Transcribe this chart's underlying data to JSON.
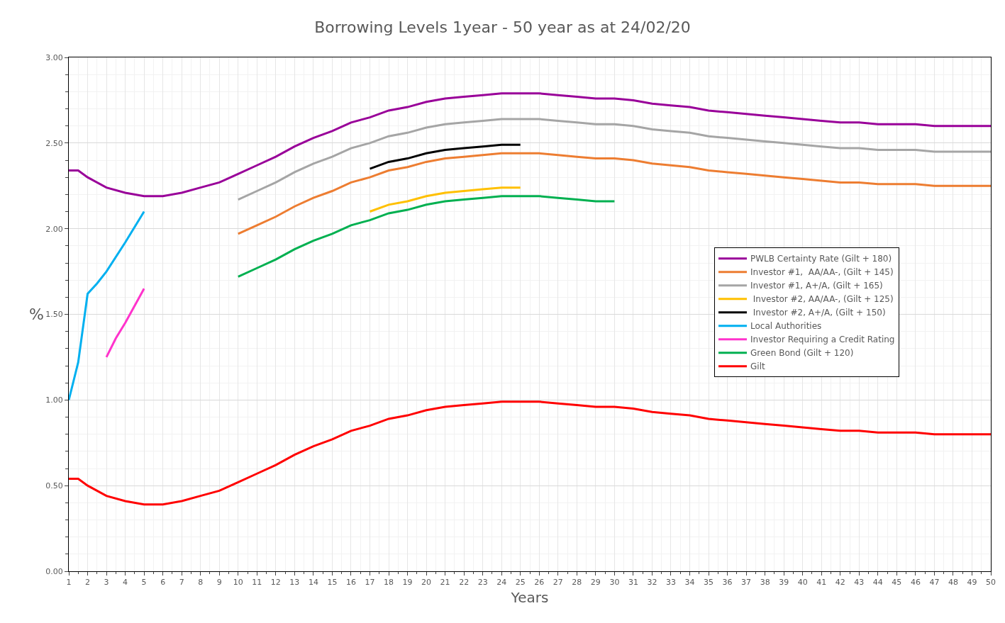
{
  "chart_data": {
    "type": "line",
    "title": "Borrowing Levels 1year - 50 year as at 24/02/20",
    "xlabel": "Years",
    "ylabel": "%",
    "xlim": [
      1,
      50
    ],
    "xticks": [
      1,
      2,
      3,
      4,
      5,
      6,
      7,
      8,
      9,
      10,
      11,
      12,
      13,
      14,
      15,
      16,
      17,
      18,
      19,
      20,
      21,
      22,
      23,
      24,
      25,
      26,
      27,
      28,
      29,
      30,
      31,
      32,
      33,
      34,
      35,
      36,
      37,
      38,
      39,
      40,
      41,
      42,
      43,
      44,
      45,
      46,
      47,
      48,
      49,
      50
    ],
    "ylim": [
      0,
      3
    ],
    "yticks": [
      {
        "value": 0,
        "label": "0.00"
      },
      {
        "value": 0.5,
        "label": "0.50"
      },
      {
        "value": 1,
        "label": "1.00"
      },
      {
        "value": 1.5,
        "label": "1.50"
      },
      {
        "value": 2,
        "label": "2.00"
      },
      {
        "value": 2.5,
        "label": "2.50"
      },
      {
        "value": 3,
        "label": "3.00"
      }
    ],
    "grid": true,
    "legend": "right",
    "line_style": "solid",
    "series": [
      {
        "name": "PWLB Certainty Rate (Gilt + 180)",
        "color": "#990099",
        "x": [
          1,
          1.5,
          2,
          3,
          4,
          5,
          6,
          7,
          8,
          9,
          10,
          11,
          12,
          13,
          14,
          15,
          16,
          17,
          18,
          19,
          20,
          21,
          22,
          23,
          24,
          25,
          26,
          27,
          28,
          29,
          30,
          31,
          32,
          33,
          34,
          35,
          36,
          37,
          38,
          39,
          40,
          41,
          42,
          43,
          44,
          45,
          46,
          47,
          48,
          49,
          50
        ],
        "values": [
          2.34,
          2.34,
          2.3,
          2.24,
          2.21,
          2.19,
          2.19,
          2.21,
          2.24,
          2.27,
          2.32,
          2.37,
          2.42,
          2.48,
          2.53,
          2.57,
          2.62,
          2.65,
          2.69,
          2.71,
          2.74,
          2.76,
          2.77,
          2.78,
          2.79,
          2.79,
          2.79,
          2.78,
          2.77,
          2.76,
          2.76,
          2.75,
          2.73,
          2.72,
          2.71,
          2.69,
          2.68,
          2.67,
          2.66,
          2.65,
          2.64,
          2.63,
          2.62,
          2.62,
          2.61,
          2.61,
          2.61,
          2.6,
          2.6,
          2.6,
          2.6
        ]
      },
      {
        "name": "Investor #1,  AA/AA-, (Gilt + 145)",
        "color": "#ed7d31",
        "x": [
          10,
          11,
          12,
          13,
          14,
          15,
          16,
          17,
          18,
          19,
          20,
          21,
          22,
          23,
          24,
          25,
          26,
          27,
          28,
          29,
          30,
          31,
          32,
          33,
          34,
          35,
          36,
          37,
          38,
          39,
          40,
          41,
          42,
          43,
          44,
          45,
          46,
          47,
          48,
          49,
          50
        ],
        "values": [
          1.97,
          2.02,
          2.07,
          2.13,
          2.18,
          2.22,
          2.27,
          2.3,
          2.34,
          2.36,
          2.39,
          2.41,
          2.42,
          2.43,
          2.44,
          2.44,
          2.44,
          2.43,
          2.42,
          2.41,
          2.41,
          2.4,
          2.38,
          2.37,
          2.36,
          2.34,
          2.33,
          2.32,
          2.31,
          2.3,
          2.29,
          2.28,
          2.27,
          2.27,
          2.26,
          2.26,
          2.26,
          2.25,
          2.25,
          2.25,
          2.25
        ]
      },
      {
        "name": "Investor #1, A+/A, (Gilt + 165)",
        "color": "#a5a5a5",
        "x": [
          10,
          11,
          12,
          13,
          14,
          15,
          16,
          17,
          18,
          19,
          20,
          21,
          22,
          23,
          24,
          25,
          26,
          27,
          28,
          29,
          30,
          31,
          32,
          33,
          34,
          35,
          36,
          37,
          38,
          39,
          40,
          41,
          42,
          43,
          44,
          45,
          46,
          47,
          48,
          49,
          50
        ],
        "values": [
          2.17,
          2.22,
          2.27,
          2.33,
          2.38,
          2.42,
          2.47,
          2.5,
          2.54,
          2.56,
          2.59,
          2.61,
          2.62,
          2.63,
          2.64,
          2.64,
          2.64,
          2.63,
          2.62,
          2.61,
          2.61,
          2.6,
          2.58,
          2.57,
          2.56,
          2.54,
          2.53,
          2.52,
          2.51,
          2.5,
          2.49,
          2.48,
          2.47,
          2.47,
          2.46,
          2.46,
          2.46,
          2.45,
          2.45,
          2.45,
          2.45
        ]
      },
      {
        "name": " Investor #2, AA/AA-, (Gilt + 125)",
        "color": "#ffc000",
        "x": [
          17,
          18,
          19,
          20,
          21,
          22,
          23,
          24,
          25
        ],
        "values": [
          2.1,
          2.14,
          2.16,
          2.19,
          2.21,
          2.22,
          2.23,
          2.24,
          2.24
        ]
      },
      {
        "name": " Investor #2, A+/A, (Gilt + 150)",
        "color": "#000000",
        "x": [
          17,
          18,
          19,
          20,
          21,
          22,
          23,
          24,
          25
        ],
        "values": [
          2.35,
          2.39,
          2.41,
          2.44,
          2.46,
          2.47,
          2.48,
          2.49,
          2.49
        ]
      },
      {
        "name": "Local Authorities",
        "color": "#00b0f0",
        "x": [
          1,
          1.5,
          2,
          2.5,
          3,
          4,
          5
        ],
        "values": [
          1.0,
          1.22,
          1.62,
          1.68,
          1.75,
          1.92,
          2.1
        ]
      },
      {
        "name": "Investor Requiring a Credit Rating",
        "color": "#ff33cc",
        "x": [
          3,
          3.5,
          4,
          5
        ],
        "values": [
          1.25,
          1.36,
          1.45,
          1.65
        ]
      },
      {
        "name": "Green Bond (Gilt + 120)",
        "color": "#00b050",
        "x": [
          10,
          11,
          12,
          13,
          14,
          15,
          16,
          17,
          18,
          19,
          20,
          21,
          22,
          23,
          24,
          25,
          26,
          27,
          28,
          29,
          30
        ],
        "values": [
          1.72,
          1.77,
          1.82,
          1.88,
          1.93,
          1.97,
          2.02,
          2.05,
          2.09,
          2.11,
          2.14,
          2.16,
          2.17,
          2.18,
          2.19,
          2.19,
          2.19,
          2.18,
          2.17,
          2.16,
          2.16
        ]
      },
      {
        "name": "Gilt",
        "color": "#ff0000",
        "x": [
          1,
          1.5,
          2,
          3,
          4,
          5,
          6,
          7,
          8,
          9,
          10,
          11,
          12,
          13,
          14,
          15,
          16,
          17,
          18,
          19,
          20,
          21,
          22,
          23,
          24,
          25,
          26,
          27,
          28,
          29,
          30,
          31,
          32,
          33,
          34,
          35,
          36,
          37,
          38,
          39,
          40,
          41,
          42,
          43,
          44,
          45,
          46,
          47,
          48,
          49,
          50
        ],
        "values": [
          0.54,
          0.54,
          0.5,
          0.44,
          0.41,
          0.39,
          0.39,
          0.41,
          0.44,
          0.47,
          0.52,
          0.57,
          0.62,
          0.68,
          0.73,
          0.77,
          0.82,
          0.85,
          0.89,
          0.91,
          0.94,
          0.96,
          0.97,
          0.98,
          0.99,
          0.99,
          0.99,
          0.98,
          0.97,
          0.96,
          0.96,
          0.95,
          0.93,
          0.92,
          0.91,
          0.89,
          0.88,
          0.87,
          0.86,
          0.85,
          0.84,
          0.83,
          0.82,
          0.82,
          0.81,
          0.81,
          0.81,
          0.8,
          0.8,
          0.8,
          0.8
        ]
      }
    ]
  }
}
